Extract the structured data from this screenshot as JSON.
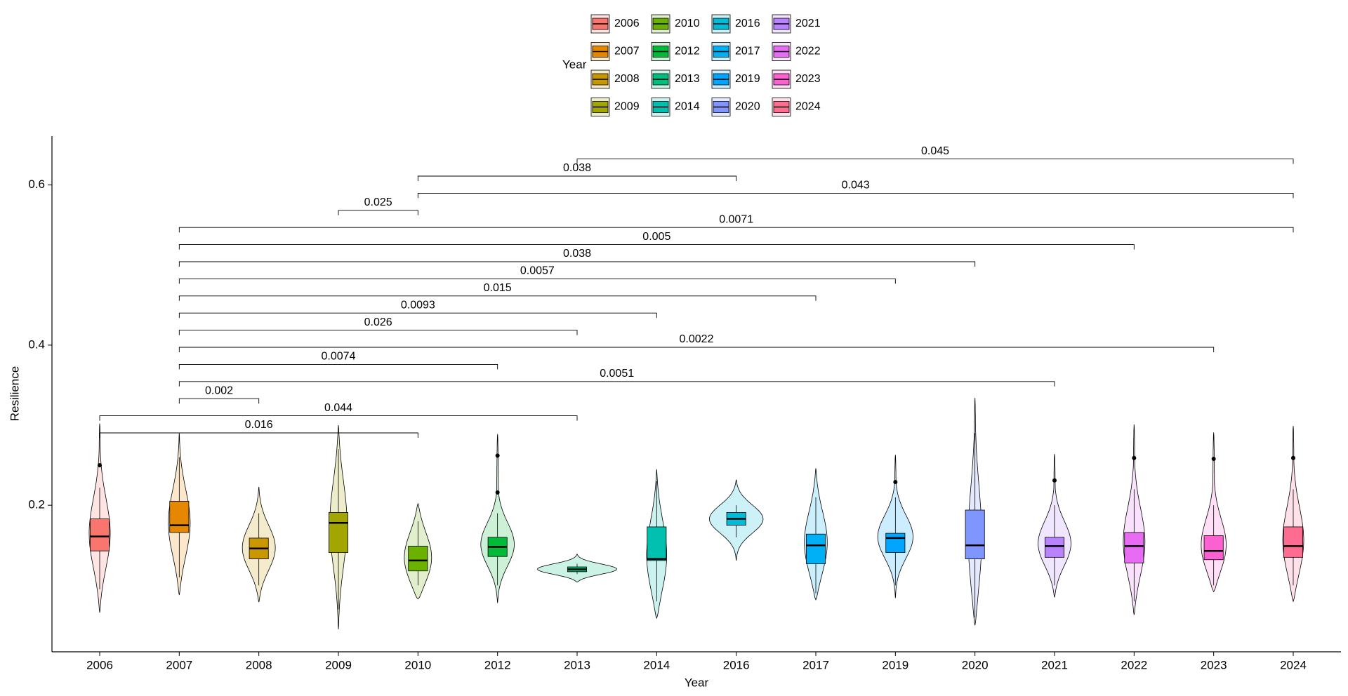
{
  "chart_data": {
    "type": "violin-box",
    "x_label": "Year",
    "y_label": "Resilience",
    "legend_title": "Year",
    "categories": [
      "2006",
      "2007",
      "2008",
      "2009",
      "2010",
      "2012",
      "2013",
      "2014",
      "2016",
      "2017",
      "2019",
      "2020",
      "2021",
      "2022",
      "2023",
      "2024"
    ],
    "colors": [
      "#F8766D",
      "#E58700",
      "#C99800",
      "#A3A500",
      "#6BB100",
      "#00BA38",
      "#00BF7D",
      "#00C0AF",
      "#00BCD8",
      "#00B0F6",
      "#00A5FF",
      "#7F96FF",
      "#B983FF",
      "#E76BF3",
      "#FD61D1",
      "#FF6C91"
    ],
    "violin_min": [
      0.066,
      0.088,
      0.079,
      0.045,
      0.083,
      0.078,
      0.104,
      0.059,
      0.131,
      0.082,
      0.084,
      0.05,
      0.085,
      0.063,
      0.092,
      0.08
    ],
    "violin_max": [
      0.302,
      0.29,
      0.223,
      0.3,
      0.202,
      0.289,
      0.139,
      0.245,
      0.232,
      0.246,
      0.263,
      0.334,
      0.264,
      0.301,
      0.291,
      0.299
    ],
    "whisker_low": [
      0.095,
      0.11,
      0.1,
      0.07,
      0.1,
      0.1,
      0.114,
      0.08,
      0.16,
      0.09,
      0.1,
      0.06,
      0.1,
      0.08,
      0.1,
      0.1
    ],
    "q1": [
      0.143,
      0.166,
      0.133,
      0.141,
      0.118,
      0.136,
      0.117,
      0.131,
      0.175,
      0.127,
      0.141,
      0.133,
      0.135,
      0.128,
      0.132,
      0.135
    ],
    "median": [
      0.161,
      0.175,
      0.146,
      0.178,
      0.131,
      0.148,
      0.12,
      0.133,
      0.183,
      0.15,
      0.159,
      0.15,
      0.149,
      0.149,
      0.143,
      0.149
    ],
    "q3": [
      0.183,
      0.205,
      0.159,
      0.191,
      0.149,
      0.16,
      0.123,
      0.173,
      0.191,
      0.164,
      0.165,
      0.194,
      0.16,
      0.166,
      0.162,
      0.173
    ],
    "whisker_high": [
      0.222,
      0.26,
      0.19,
      0.27,
      0.18,
      0.19,
      0.127,
      0.23,
      0.2,
      0.21,
      0.21,
      0.29,
      0.2,
      0.22,
      0.2,
      0.22
    ],
    "outliers": [
      [
        0.25
      ],
      [],
      [],
      [],
      [],
      [
        0.216,
        0.262
      ],
      [],
      [],
      [],
      [],
      [
        0.229
      ],
      [],
      [
        0.231
      ],
      [
        0.259
      ],
      [
        0.258
      ],
      [
        0.259
      ]
    ],
    "ylim": [
      0.017,
      0.661
    ],
    "yticks": [
      0.2,
      0.4,
      0.6
    ],
    "comparisons": [
      {
        "from": "2006",
        "to": "2010",
        "p": 0.016
      },
      {
        "from": "2006",
        "to": "2013",
        "p": 0.044
      },
      {
        "from": "2007",
        "to": "2008",
        "p": 0.002
      },
      {
        "from": "2007",
        "to": "2021",
        "p": 0.0051
      },
      {
        "from": "2007",
        "to": "2012",
        "p": 0.0074
      },
      {
        "from": "2007",
        "to": "2023",
        "p": 0.0022
      },
      {
        "from": "2007",
        "to": "2013",
        "p": 0.026
      },
      {
        "from": "2007",
        "to": "2014",
        "p": 0.0093
      },
      {
        "from": "2007",
        "to": "2017",
        "p": 0.015
      },
      {
        "from": "2007",
        "to": "2019",
        "p": 0.0057
      },
      {
        "from": "2007",
        "to": "2020",
        "p": 0.038
      },
      {
        "from": "2007",
        "to": "2022",
        "p": 0.005
      },
      {
        "from": "2007",
        "to": "2024",
        "p": 0.0071
      },
      {
        "from": "2009",
        "to": "2010",
        "p": 0.025
      },
      {
        "from": "2010",
        "to": "2024",
        "p": 0.043
      },
      {
        "from": "2010",
        "to": "2016",
        "p": 0.038
      },
      {
        "from": "2013",
        "to": "2024",
        "p": 0.045
      }
    ]
  }
}
